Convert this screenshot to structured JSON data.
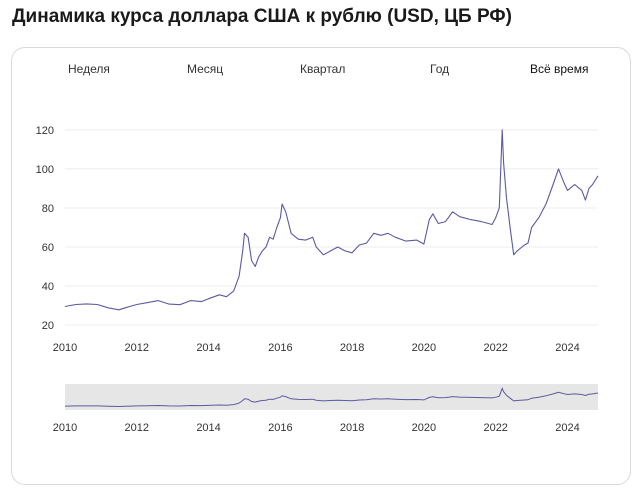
{
  "heading": "Динамика курса доллара США к рублю (USD, ЦБ РФ)",
  "tabs": [
    {
      "label": "Неделя",
      "active": false
    },
    {
      "label": "Месяц",
      "active": false
    },
    {
      "label": "Квартал",
      "active": false
    },
    {
      "label": "Год",
      "active": false
    },
    {
      "label": "Всё время",
      "active": true
    }
  ],
  "colors": {
    "line": "#5b5aa0",
    "navigator_bg": "#e6e6e6",
    "grid": "#ececec"
  },
  "chart_data": {
    "type": "line",
    "title": "",
    "xlabel": "",
    "ylabel": "",
    "xlim": [
      2010,
      2024.85
    ],
    "ylim": [
      20,
      122
    ],
    "yticks": [
      "20",
      "40",
      "60",
      "80",
      "100",
      "120"
    ],
    "xticks": [
      "2010",
      "2012",
      "2014",
      "2016",
      "2018",
      "2020",
      "2022",
      "2024"
    ],
    "grid": true,
    "series": [
      {
        "x": [
          2010.0,
          2010.3,
          2010.6,
          2010.9,
          2011.2,
          2011.5,
          2011.8,
          2012.0,
          2012.3,
          2012.6,
          2012.9,
          2013.2,
          2013.5,
          2013.8,
          2014.0,
          2014.3,
          2014.5,
          2014.7,
          2014.85,
          2014.95,
          2015.0,
          2015.1,
          2015.2,
          2015.3,
          2015.4,
          2015.5,
          2015.6,
          2015.7,
          2015.8,
          2015.9,
          2016.0,
          2016.05,
          2016.15,
          2016.3,
          2016.5,
          2016.7,
          2016.9,
          2017.0,
          2017.2,
          2017.4,
          2017.6,
          2017.8,
          2018.0,
          2018.2,
          2018.4,
          2018.6,
          2018.8,
          2019.0,
          2019.2,
          2019.5,
          2019.8,
          2020.0,
          2020.15,
          2020.25,
          2020.4,
          2020.6,
          2020.8,
          2021.0,
          2021.3,
          2021.6,
          2021.9,
          2022.0,
          2022.1,
          2022.18,
          2022.22,
          2022.3,
          2022.4,
          2022.5,
          2022.6,
          2022.8,
          2022.9,
          2023.0,
          2023.2,
          2023.4,
          2023.6,
          2023.75,
          2023.9,
          2024.0,
          2024.2,
          2024.4,
          2024.5,
          2024.6,
          2024.7,
          2024.85
        ],
        "values": [
          29.5,
          30.5,
          30.8,
          30.5,
          28.8,
          27.8,
          29.5,
          30.5,
          31.5,
          32.5,
          30.7,
          30.4,
          32.5,
          32.0,
          33.5,
          35.5,
          34.5,
          37.5,
          45.0,
          58.0,
          67.0,
          65.0,
          53.0,
          50.0,
          55.0,
          58.0,
          60.0,
          65.0,
          64.0,
          70.0,
          75.0,
          82.0,
          78.0,
          67.0,
          64.0,
          63.5,
          65.0,
          60.0,
          56.0,
          58.0,
          60.0,
          58.0,
          57.0,
          61.0,
          62.0,
          67.0,
          66.0,
          67.0,
          65.0,
          63.0,
          63.5,
          61.5,
          74.0,
          77.0,
          72.0,
          73.0,
          78.0,
          75.5,
          74.0,
          73.0,
          71.5,
          75.0,
          80.0,
          120.0,
          103.0,
          85.0,
          70.0,
          56.0,
          58.0,
          61.0,
          62.0,
          70.0,
          75.0,
          82.0,
          92.0,
          100.0,
          93.0,
          89.0,
          92.0,
          89.0,
          84.0,
          90.0,
          92.0,
          96.5
        ]
      }
    ],
    "navigator": {
      "xticks": [
        "2010",
        "2012",
        "2014",
        "2016",
        "2018",
        "2020",
        "2022",
        "2024"
      ]
    }
  }
}
